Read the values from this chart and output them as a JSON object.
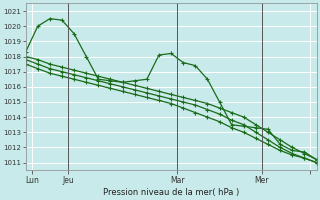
{
  "bg_color": "#c8eaea",
  "grid_color": "#b8d8d8",
  "line_color": "#1a6b1a",
  "marker_color": "#1a6b1a",
  "title": "Pression niveau de la mer( hPa )",
  "ylim": [
    1010.5,
    1021.5
  ],
  "yticks": [
    1011,
    1012,
    1013,
    1014,
    1015,
    1016,
    1017,
    1018,
    1019,
    1020,
    1021
  ],
  "xlim": [
    0,
    24
  ],
  "xlabel_tick_positions": [
    0.5,
    3.5,
    12.5,
    19.5,
    23.5
  ],
  "xlabel_labels": [
    "Lun",
    "Jeu",
    "Mar",
    "Mer",
    ""
  ],
  "vline_positions": [
    3.5,
    12.5,
    19.5
  ],
  "series1_x": [
    0,
    1,
    2,
    3,
    4,
    5,
    6,
    7,
    8,
    9,
    10,
    11,
    12,
    13,
    14,
    15,
    16,
    17,
    18,
    19,
    20,
    21,
    22,
    23,
    24
  ],
  "series1_y": [
    1018.3,
    1020.0,
    1020.5,
    1020.4,
    1019.5,
    1018.0,
    1016.5,
    1016.4,
    1016.3,
    1016.4,
    1016.5,
    1018.1,
    1018.2,
    1017.6,
    1017.4,
    1016.5,
    1015.0,
    1013.5,
    1013.4,
    1013.3,
    1013.2,
    1012.2,
    1011.8,
    1011.7,
    1011.2
  ],
  "series2_x": [
    0,
    1,
    2,
    3,
    4,
    5,
    6,
    7,
    8,
    9,
    10,
    11,
    12,
    13,
    14,
    15,
    16,
    17,
    18,
    19,
    20,
    21,
    22,
    23,
    24
  ],
  "series2_y": [
    1018.0,
    1017.8,
    1017.5,
    1017.3,
    1017.1,
    1016.9,
    1016.7,
    1016.5,
    1016.3,
    1016.1,
    1015.9,
    1015.7,
    1015.5,
    1015.3,
    1015.1,
    1014.9,
    1014.6,
    1014.3,
    1014.0,
    1013.5,
    1013.0,
    1012.5,
    1012.0,
    1011.6,
    1011.2
  ],
  "series3_x": [
    0,
    1,
    2,
    3,
    4,
    5,
    6,
    7,
    8,
    9,
    10,
    11,
    12,
    13,
    14,
    15,
    16,
    17,
    18,
    19,
    20,
    21,
    22,
    23,
    24
  ],
  "series3_y": [
    1017.8,
    1017.5,
    1017.2,
    1017.0,
    1016.8,
    1016.6,
    1016.4,
    1016.2,
    1016.0,
    1015.8,
    1015.6,
    1015.4,
    1015.2,
    1015.0,
    1014.8,
    1014.5,
    1014.2,
    1013.8,
    1013.5,
    1013.0,
    1012.5,
    1012.0,
    1011.6,
    1011.3,
    1011.0
  ],
  "series4_x": [
    0,
    1,
    2,
    3,
    4,
    5,
    6,
    7,
    8,
    9,
    10,
    11,
    12,
    13,
    14,
    15,
    16,
    17,
    18,
    19,
    20,
    21,
    22,
    23,
    24
  ],
  "series4_y": [
    1017.5,
    1017.2,
    1016.9,
    1016.7,
    1016.5,
    1016.3,
    1016.1,
    1015.9,
    1015.7,
    1015.5,
    1015.3,
    1015.1,
    1014.9,
    1014.6,
    1014.3,
    1014.0,
    1013.7,
    1013.3,
    1013.0,
    1012.6,
    1012.2,
    1011.8,
    1011.5,
    1011.3,
    1011.0
  ]
}
